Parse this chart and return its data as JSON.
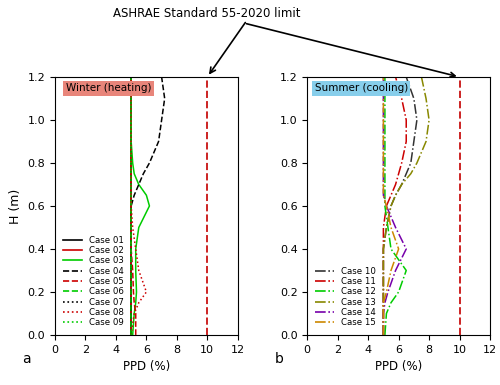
{
  "title": "ASHRAE Standard 55-2020 limit",
  "left_label": "Winter (heating)",
  "right_label": "Summer (cooling)",
  "left_label_bg": "#e8857a",
  "right_label_bg": "#87ceeb",
  "ylabel": "H (m)",
  "xlabel": "PPD (%)",
  "xlim": [
    0,
    12
  ],
  "ylim": [
    0.0,
    1.2
  ],
  "ashrae_limit": 10,
  "ashrae_color": "#cc2222",
  "heights": [
    0.0,
    0.05,
    0.1,
    0.15,
    0.2,
    0.3,
    0.4,
    0.5,
    0.6,
    0.65,
    0.7,
    0.75,
    0.8,
    0.9,
    1.0,
    1.1,
    1.2
  ],
  "winter_cases": {
    "Case 01": {
      "color": "#000000",
      "linestyle": "solid",
      "ppd": [
        5.0,
        5.0,
        5.0,
        5.0,
        5.0,
        5.0,
        5.0,
        5.0,
        5.0,
        5.0,
        5.0,
        5.0,
        5.0,
        5.0,
        5.0,
        5.0,
        5.0
      ]
    },
    "Case 02": {
      "color": "#cc0000",
      "linestyle": "solid",
      "ppd": [
        5.0,
        5.0,
        5.0,
        5.0,
        5.0,
        5.0,
        5.0,
        5.0,
        5.0,
        5.0,
        5.0,
        5.0,
        5.0,
        5.0,
        5.0,
        5.0,
        5.0
      ]
    },
    "Case 03": {
      "color": "#00cc00",
      "linestyle": "solid",
      "ppd": [
        5.1,
        5.15,
        5.2,
        5.3,
        5.35,
        5.3,
        5.3,
        5.5,
        6.2,
        6.0,
        5.5,
        5.2,
        5.1,
        5.0,
        5.0,
        5.0,
        5.0
      ]
    },
    "Case 04": {
      "color": "#000000",
      "linestyle": "dashed",
      "ppd": [
        5.0,
        5.0,
        5.0,
        5.0,
        5.0,
        5.0,
        5.0,
        5.0,
        5.0,
        5.2,
        5.5,
        5.8,
        6.2,
        6.8,
        7.0,
        7.2,
        7.0
      ]
    },
    "Case 05": {
      "color": "#cc0000",
      "linestyle": "dashed",
      "ppd": [
        5.3,
        5.3,
        5.3,
        5.2,
        5.15,
        5.1,
        5.0,
        5.0,
        5.0,
        5.0,
        5.0,
        5.0,
        5.0,
        5.0,
        5.0,
        5.0,
        5.0
      ]
    },
    "Case 06": {
      "color": "#00cc00",
      "linestyle": "dashed",
      "ppd": [
        5.0,
        5.0,
        5.0,
        5.0,
        5.0,
        5.0,
        5.0,
        5.0,
        5.0,
        5.0,
        5.0,
        5.0,
        5.0,
        5.0,
        5.0,
        5.0,
        5.0
      ]
    },
    "Case 07": {
      "color": "#000000",
      "linestyle": "dotted",
      "ppd": [
        5.0,
        5.0,
        5.0,
        5.0,
        5.0,
        5.0,
        5.0,
        5.0,
        5.0,
        5.0,
        5.0,
        5.0,
        5.0,
        5.0,
        5.0,
        5.0,
        5.0
      ]
    },
    "Case 08": {
      "color": "#cc0000",
      "linestyle": "dotted",
      "ppd": [
        5.0,
        5.1,
        5.2,
        5.5,
        6.0,
        5.5,
        5.3,
        5.1,
        5.0,
        5.0,
        5.0,
        5.0,
        5.0,
        5.0,
        5.0,
        5.0,
        5.0
      ]
    },
    "Case 09": {
      "color": "#00cc00",
      "linestyle": "dotted",
      "ppd": [
        5.0,
        5.0,
        5.0,
        5.0,
        5.0,
        5.0,
        5.0,
        5.0,
        5.0,
        5.0,
        5.0,
        5.0,
        5.0,
        5.0,
        5.0,
        5.0,
        5.0
      ]
    }
  },
  "summer_cases": {
    "Case 10": {
      "color": "#333333",
      "linestyle": "dashdot",
      "ppd": [
        5.0,
        5.0,
        5.0,
        5.0,
        5.0,
        5.0,
        5.0,
        5.2,
        5.5,
        5.8,
        6.2,
        6.5,
        6.8,
        7.0,
        7.2,
        7.0,
        6.5
      ]
    },
    "Case 11": {
      "color": "#cc0000",
      "linestyle": "dashdot",
      "ppd": [
        5.0,
        5.0,
        5.0,
        5.0,
        5.0,
        5.0,
        5.0,
        5.0,
        5.2,
        5.5,
        5.8,
        6.0,
        6.2,
        6.5,
        6.5,
        6.2,
        5.8
      ]
    },
    "Case 12": {
      "color": "#00cc00",
      "linestyle": "dashdot",
      "ppd": [
        5.1,
        5.15,
        5.2,
        5.5,
        6.0,
        6.5,
        5.5,
        5.3,
        5.1,
        5.1,
        5.1,
        5.1,
        5.1,
        5.1,
        5.1,
        5.1,
        5.1
      ]
    },
    "Case 13": {
      "color": "#888800",
      "linestyle": "dashdot",
      "ppd": [
        5.0,
        5.0,
        5.0,
        5.0,
        5.0,
        5.0,
        5.0,
        5.2,
        5.5,
        5.8,
        6.2,
        6.8,
        7.2,
        7.8,
        8.0,
        7.8,
        7.5
      ]
    },
    "Case 14": {
      "color": "#7700aa",
      "linestyle": "dashdot",
      "ppd": [
        5.0,
        5.0,
        5.0,
        5.1,
        5.3,
        5.8,
        6.5,
        5.8,
        5.2,
        5.0,
        5.0,
        5.0,
        5.0,
        5.0,
        5.0,
        5.0,
        5.0
      ]
    },
    "Case 15": {
      "color": "#cc8800",
      "linestyle": "dashdot",
      "ppd": [
        5.0,
        5.0,
        5.0,
        5.0,
        5.2,
        5.5,
        6.0,
        5.5,
        5.2,
        5.0,
        5.0,
        5.0,
        5.0,
        5.0,
        5.0,
        5.0,
        5.0
      ]
    }
  },
  "subplot_labels": [
    "a",
    "b"
  ],
  "figsize": [
    5.0,
    3.85
  ],
  "dpi": 100
}
